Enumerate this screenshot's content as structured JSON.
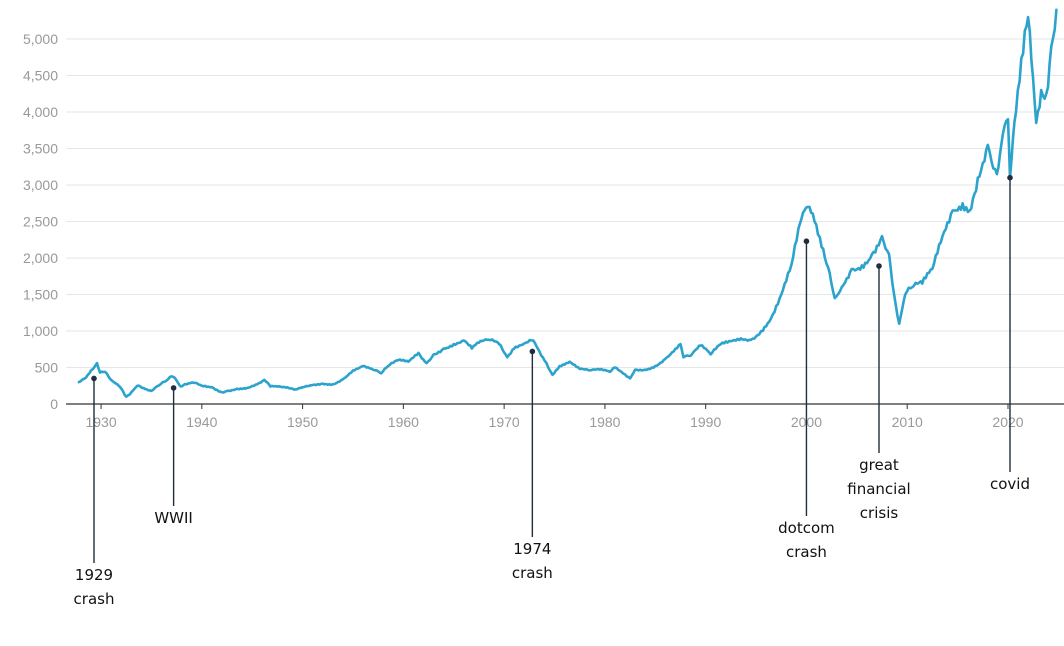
{
  "chart_data": {
    "type": "line",
    "title": "",
    "xlabel": "",
    "ylabel": "",
    "xlim": [
      1927.5,
      2025
    ],
    "ylim": [
      0,
      5000
    ],
    "grid": true,
    "x_ticks": [
      {
        "value": 1930,
        "label": "1930"
      },
      {
        "value": 1940,
        "label": "1940"
      },
      {
        "value": 1950,
        "label": "1950"
      },
      {
        "value": 1960,
        "label": "1960"
      },
      {
        "value": 1970,
        "label": "1970"
      },
      {
        "value": 1980,
        "label": "1980"
      },
      {
        "value": 1990,
        "label": "1990"
      },
      {
        "value": 2000,
        "label": "2000"
      },
      {
        "value": 2010,
        "label": "2010"
      },
      {
        "value": 2020,
        "label": "2020"
      }
    ],
    "y_ticks": [
      {
        "value": 0,
        "label": "0"
      },
      {
        "value": 500,
        "label": "500"
      },
      {
        "value": 1000,
        "label": "1,000"
      },
      {
        "value": 1500,
        "label": "1,500"
      },
      {
        "value": 2000,
        "label": "2,000"
      },
      {
        "value": 2500,
        "label": "2,500"
      },
      {
        "value": 3000,
        "label": "3,000"
      },
      {
        "value": 3500,
        "label": "3,500"
      },
      {
        "value": 4000,
        "label": "4,000"
      },
      {
        "value": 4500,
        "label": "4,500"
      },
      {
        "value": 5000,
        "label": "5,000"
      }
    ],
    "series": [
      {
        "color": "#2ba3cc",
        "points": [
          [
            1927.8,
            300
          ],
          [
            1928.5,
            360
          ],
          [
            1929.2,
            480
          ],
          [
            1929.6,
            560
          ],
          [
            1929.9,
            430
          ],
          [
            1930.4,
            440
          ],
          [
            1931.0,
            330
          ],
          [
            1931.6,
            270
          ],
          [
            1932.2,
            170
          ],
          [
            1932.5,
            100
          ],
          [
            1933.0,
            160
          ],
          [
            1933.6,
            250
          ],
          [
            1934.2,
            220
          ],
          [
            1935.0,
            180
          ],
          [
            1935.8,
            260
          ],
          [
            1936.5,
            320
          ],
          [
            1937.0,
            380
          ],
          [
            1937.3,
            360
          ],
          [
            1937.9,
            240
          ],
          [
            1938.5,
            270
          ],
          [
            1939.2,
            290
          ],
          [
            1940.0,
            250
          ],
          [
            1941.0,
            230
          ],
          [
            1942.0,
            160
          ],
          [
            1942.5,
            180
          ],
          [
            1943.5,
            210
          ],
          [
            1944.5,
            220
          ],
          [
            1945.5,
            270
          ],
          [
            1946.2,
            330
          ],
          [
            1946.8,
            240
          ],
          [
            1948.0,
            230
          ],
          [
            1949.3,
            200
          ],
          [
            1950.0,
            230
          ],
          [
            1951.0,
            260
          ],
          [
            1952.0,
            280
          ],
          [
            1953.0,
            270
          ],
          [
            1954.0,
            340
          ],
          [
            1955.0,
            460
          ],
          [
            1956.0,
            520
          ],
          [
            1957.0,
            470
          ],
          [
            1957.8,
            420
          ],
          [
            1958.5,
            520
          ],
          [
            1959.5,
            600
          ],
          [
            1960.5,
            580
          ],
          [
            1961.5,
            700
          ],
          [
            1962.3,
            560
          ],
          [
            1963.0,
            680
          ],
          [
            1964.0,
            760
          ],
          [
            1965.0,
            820
          ],
          [
            1966.0,
            870
          ],
          [
            1966.8,
            760
          ],
          [
            1967.5,
            840
          ],
          [
            1968.5,
            880
          ],
          [
            1969.5,
            820
          ],
          [
            1970.3,
            640
          ],
          [
            1971.0,
            760
          ],
          [
            1972.0,
            830
          ],
          [
            1972.9,
            870
          ],
          [
            1973.5,
            720
          ],
          [
            1974.2,
            560
          ],
          [
            1974.8,
            400
          ],
          [
            1975.5,
            520
          ],
          [
            1976.5,
            580
          ],
          [
            1977.5,
            480
          ],
          [
            1978.5,
            460
          ],
          [
            1979.5,
            470
          ],
          [
            1980.5,
            440
          ],
          [
            1981.0,
            500
          ],
          [
            1982.5,
            350
          ],
          [
            1983.0,
            470
          ],
          [
            1984.0,
            470
          ],
          [
            1985.0,
            520
          ],
          [
            1986.0,
            620
          ],
          [
            1987.5,
            820
          ],
          [
            1987.8,
            640
          ],
          [
            1988.5,
            660
          ],
          [
            1989.5,
            800
          ],
          [
            1990.5,
            680
          ],
          [
            1991.5,
            820
          ],
          [
            1992.5,
            860
          ],
          [
            1993.5,
            900
          ],
          [
            1994.5,
            880
          ],
          [
            1995.5,
            1000
          ],
          [
            1996.5,
            1180
          ],
          [
            1997.5,
            1500
          ],
          [
            1998.5,
            1900
          ],
          [
            1999.2,
            2400
          ],
          [
            1999.8,
            2650
          ],
          [
            2000.3,
            2700
          ],
          [
            2000.8,
            2500
          ],
          [
            2001.5,
            2150
          ],
          [
            2002.3,
            1800
          ],
          [
            2002.8,
            1450
          ],
          [
            2003.5,
            1600
          ],
          [
            2004.5,
            1850
          ],
          [
            2005.5,
            1900
          ],
          [
            2006.5,
            2050
          ],
          [
            2007.5,
            2300
          ],
          [
            2008.2,
            2050
          ],
          [
            2008.7,
            1500
          ],
          [
            2009.2,
            1100
          ],
          [
            2009.8,
            1500
          ],
          [
            2010.5,
            1600
          ],
          [
            2011.5,
            1650
          ],
          [
            2012.5,
            1850
          ],
          [
            2013.5,
            2300
          ],
          [
            2014.5,
            2650
          ],
          [
            2015.5,
            2750
          ],
          [
            2016.2,
            2650
          ],
          [
            2017.0,
            3100
          ],
          [
            2018.0,
            3550
          ],
          [
            2018.9,
            3150
          ],
          [
            2019.5,
            3700
          ],
          [
            2020.0,
            3900
          ],
          [
            2020.2,
            3100
          ],
          [
            2020.8,
            4000
          ],
          [
            2021.5,
            4800
          ],
          [
            2022.0,
            5300
          ],
          [
            2022.8,
            3850
          ],
          [
            2023.3,
            4300
          ],
          [
            2023.8,
            4250
          ],
          [
            2024.3,
            4900
          ],
          [
            2024.8,
            5400
          ]
        ]
      }
    ],
    "annotations": [
      {
        "x": 1929.3,
        "y": 350,
        "lines": [
          "1929",
          "crash"
        ]
      },
      {
        "x": 1937.2,
        "y": 220,
        "lines": [
          "WWII"
        ]
      },
      {
        "x": 1972.8,
        "y": 720,
        "lines": [
          "1974",
          "crash"
        ]
      },
      {
        "x": 2000.0,
        "y": 2230,
        "lines": [
          "dotcom",
          "crash"
        ]
      },
      {
        "x": 2007.2,
        "y": 1890,
        "lines": [
          "great",
          "financial",
          "crisis"
        ]
      },
      {
        "x": 2020.2,
        "y": 3100,
        "lines": [
          "covid"
        ]
      }
    ]
  }
}
